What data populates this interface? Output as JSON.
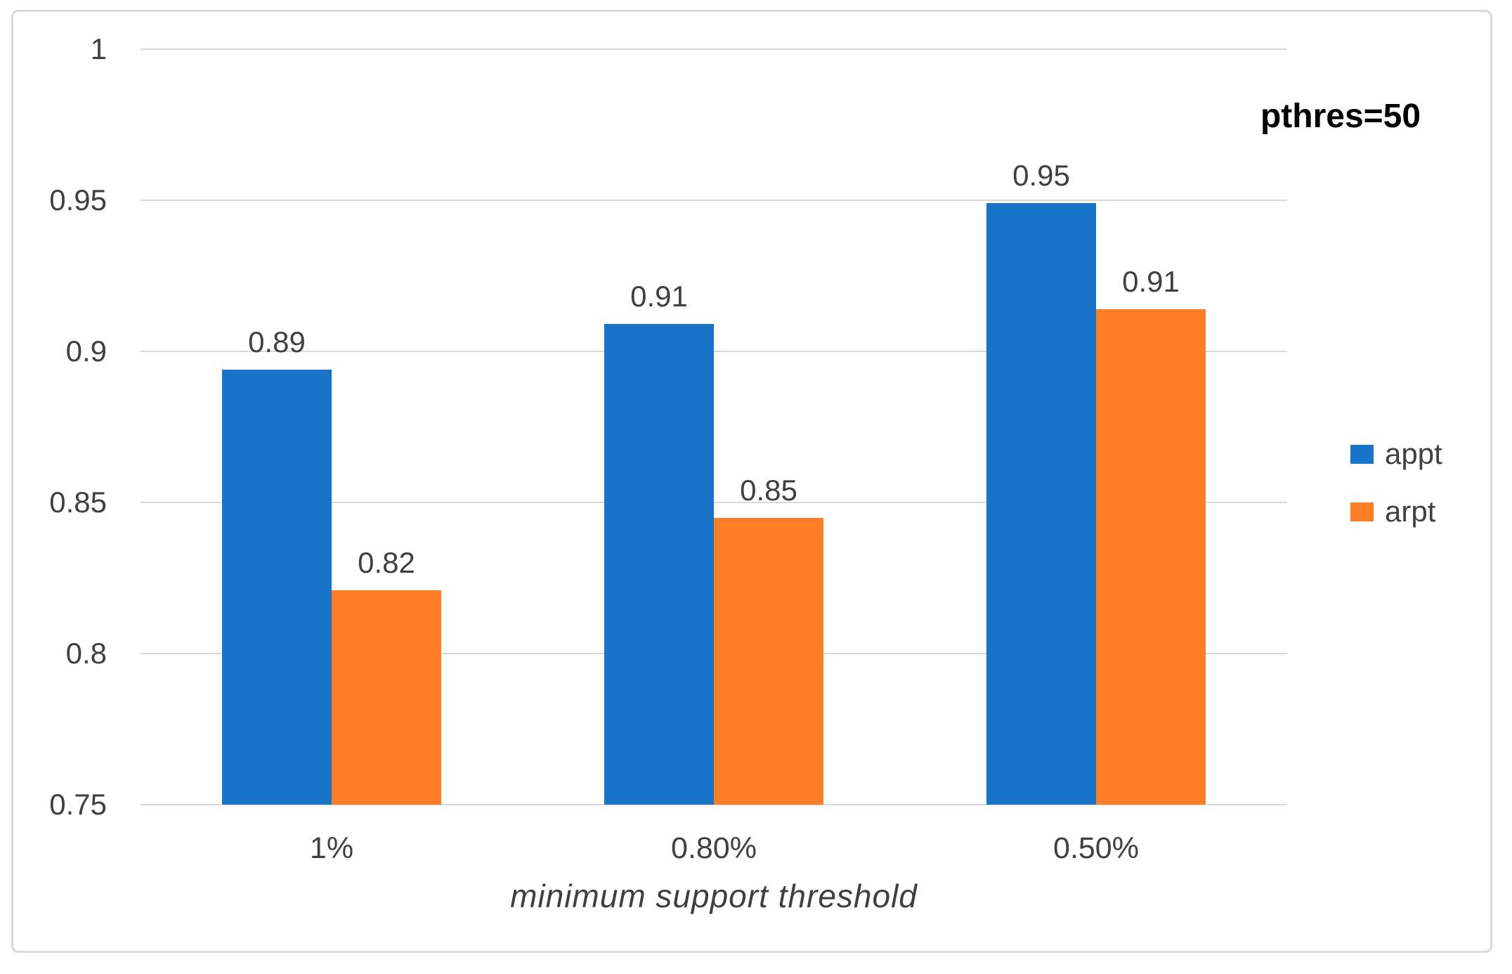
{
  "chart_data": {
    "type": "bar",
    "annotation": "pthres=50",
    "categories": [
      "1%",
      "0.80%",
      "0.50%"
    ],
    "series": [
      {
        "name": "appt",
        "color": "#1774C8",
        "values": [
          0.894,
          0.909,
          0.949
        ],
        "labels": [
          "0.89",
          "0.91",
          "0.95"
        ]
      },
      {
        "name": "arpt",
        "color": "#FD7E26",
        "values": [
          0.821,
          0.845,
          0.914
        ],
        "labels": [
          "0.82",
          "0.85",
          "0.91"
        ]
      }
    ],
    "xlabel": "minimum support threshold",
    "ylabel": "",
    "ylim": [
      0.75,
      1.0
    ],
    "yticks": [
      {
        "value": 1,
        "label": "1"
      },
      {
        "value": 0.95,
        "label": "0.95"
      },
      {
        "value": 0.9,
        "label": "0.9"
      },
      {
        "value": 0.85,
        "label": "0.85"
      },
      {
        "value": 0.8,
        "label": "0.8"
      },
      {
        "value": 0.75,
        "label": "0.75"
      }
    ],
    "grid": true,
    "legend_position": "right"
  },
  "colors": {
    "grid": "#D9D9D9",
    "figure_border": "#D9D9D9",
    "axis_text": "#404040",
    "data_label_text": "#404040",
    "annotation_text": "#000000",
    "background": "#FFFFFF"
  }
}
